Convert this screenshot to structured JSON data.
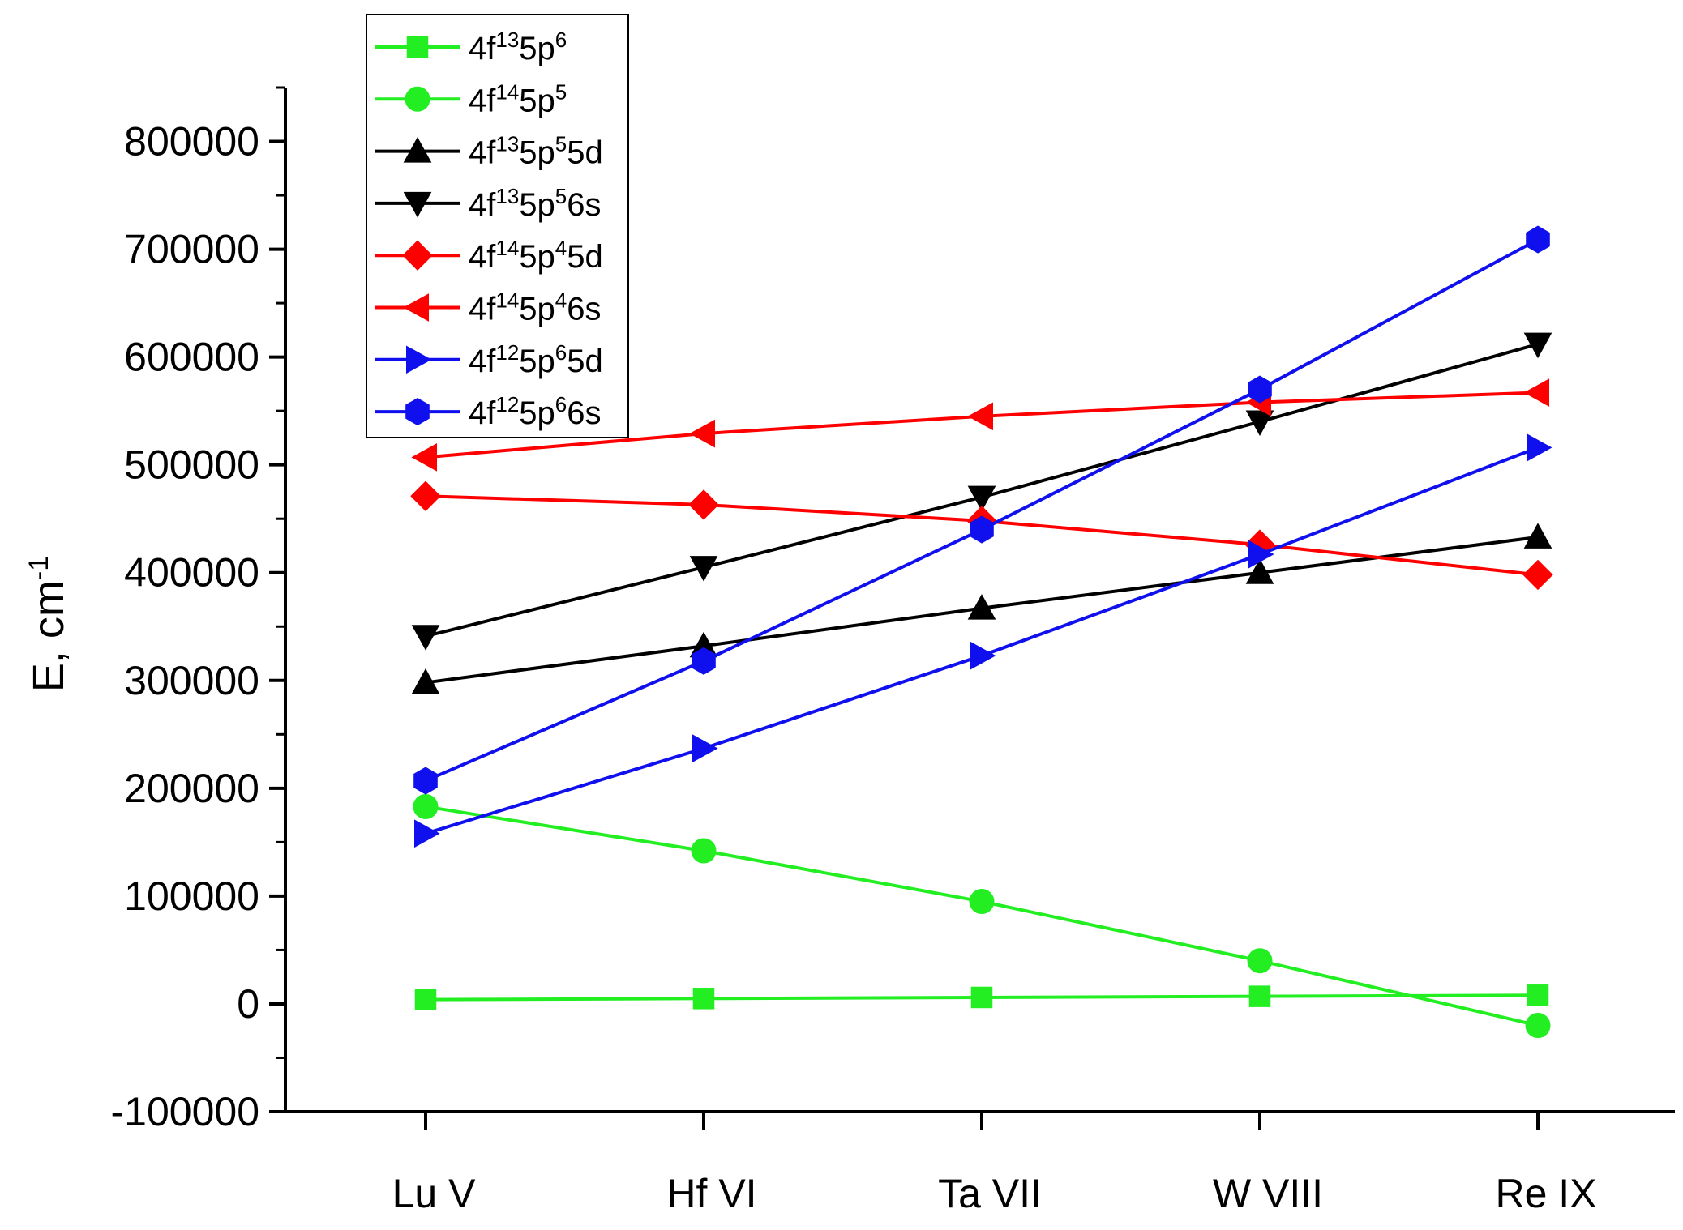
{
  "chart_data": {
    "type": "line",
    "title": "",
    "xlabel": "",
    "ylabel": "E, cm",
    "ylabel_sup": "-1",
    "categories": [
      "Lu V",
      "Hf VI",
      "Ta VII",
      "W VIII",
      "Re IX"
    ],
    "ylim": [
      -100000,
      850000
    ],
    "yticks": [
      -100000,
      0,
      100000,
      200000,
      300000,
      400000,
      500000,
      600000,
      700000,
      800000
    ],
    "ytick_labels": [
      "-100000",
      "0",
      "100000",
      "200000",
      "300000",
      "400000",
      "500000",
      "600000",
      "700000",
      "800000"
    ],
    "grid": false,
    "legend_position": "top-left",
    "series": [
      {
        "name": "4f135p6",
        "label_parts": [
          [
            "4f",
            ""
          ],
          [
            "13",
            "sup"
          ],
          [
            "5p",
            ""
          ],
          [
            "6",
            "sup"
          ]
        ],
        "color": "#22ee22",
        "marker": "square",
        "values": [
          4000,
          5000,
          6000,
          7000,
          8000
        ]
      },
      {
        "name": "4f145p5",
        "label_parts": [
          [
            "4f",
            ""
          ],
          [
            "14",
            "sup"
          ],
          [
            "5p",
            ""
          ],
          [
            "5",
            "sup"
          ]
        ],
        "color": "#22ee22",
        "marker": "circle",
        "values": [
          183000,
          142000,
          95000,
          40000,
          -20000
        ]
      },
      {
        "name": "4f135p55d",
        "label_parts": [
          [
            "4f",
            ""
          ],
          [
            "13",
            "sup"
          ],
          [
            "5p",
            ""
          ],
          [
            "5",
            "sup"
          ],
          [
            "5d",
            ""
          ]
        ],
        "color": "#000000",
        "marker": "triangle-up",
        "values": [
          298000,
          332000,
          367000,
          400000,
          433000
        ]
      },
      {
        "name": "4f135p56s",
        "label_parts": [
          [
            "4f",
            ""
          ],
          [
            "13",
            "sup"
          ],
          [
            "5p",
            ""
          ],
          [
            "5",
            "sup"
          ],
          [
            "6s",
            ""
          ]
        ],
        "color": "#000000",
        "marker": "triangle-down",
        "values": [
          341000,
          405000,
          470000,
          540000,
          612000
        ]
      },
      {
        "name": "4f145p45d",
        "label_parts": [
          [
            "4f",
            ""
          ],
          [
            "14",
            "sup"
          ],
          [
            "5p",
            ""
          ],
          [
            "4",
            "sup"
          ],
          [
            "5d",
            ""
          ]
        ],
        "color": "#ff0000",
        "marker": "diamond",
        "values": [
          471000,
          463000,
          448000,
          426000,
          398000
        ]
      },
      {
        "name": "4f145p46s",
        "label_parts": [
          [
            "4f",
            ""
          ],
          [
            "14",
            "sup"
          ],
          [
            "5p",
            ""
          ],
          [
            "4",
            "sup"
          ],
          [
            "6s",
            ""
          ]
        ],
        "color": "#ff0000",
        "marker": "triangle-left",
        "values": [
          507000,
          529000,
          545000,
          558000,
          567000
        ]
      },
      {
        "name": "4f125p65d",
        "label_parts": [
          [
            "4f",
            ""
          ],
          [
            "12",
            "sup"
          ],
          [
            "5p",
            ""
          ],
          [
            "6",
            "sup"
          ],
          [
            "5d",
            ""
          ]
        ],
        "color": "#1010ee",
        "marker": "triangle-right",
        "values": [
          158000,
          237000,
          323000,
          417000,
          516000
        ]
      },
      {
        "name": "4f125p66s",
        "label_parts": [
          [
            "4f",
            ""
          ],
          [
            "12",
            "sup"
          ],
          [
            "5p",
            ""
          ],
          [
            "6",
            "sup"
          ],
          [
            "6s",
            ""
          ]
        ],
        "color": "#1010ee",
        "marker": "hexagon",
        "values": [
          207000,
          318000,
          440000,
          570000,
          709000
        ]
      }
    ]
  }
}
